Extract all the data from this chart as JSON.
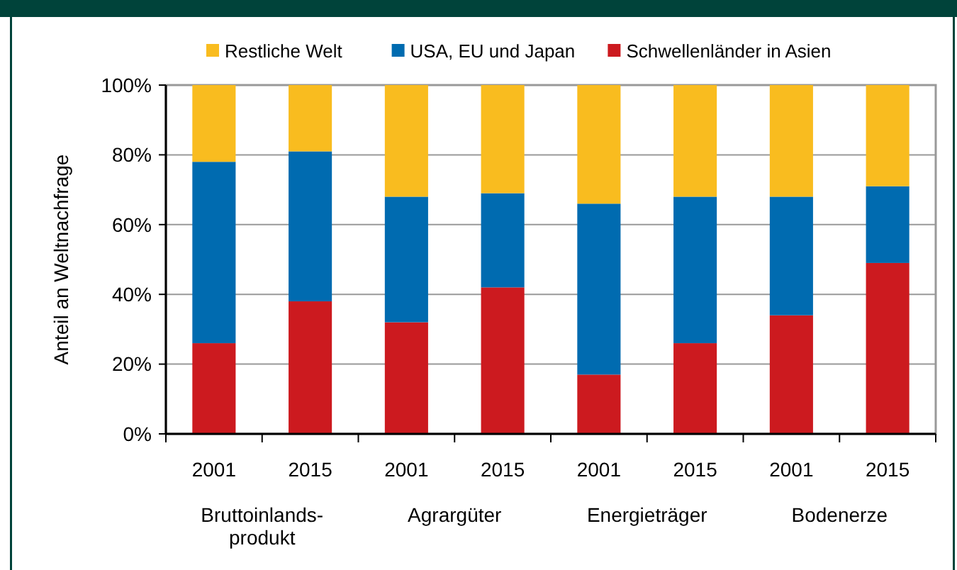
{
  "chart_data": {
    "type": "bar",
    "stacked": true,
    "ylabel": "Anteil an Weltnachfrage",
    "categories": [
      "2001",
      "2015",
      "2001",
      "2015",
      "2001",
      "2015",
      "2001",
      "2015"
    ],
    "series": [
      {
        "name": "Schwellenländer in Asien",
        "color": "#cc1a1f",
        "values": [
          26,
          38,
          32,
          42,
          17,
          26,
          34,
          49
        ]
      },
      {
        "name": "USA, EU und Japan",
        "color": "#006bb0",
        "values": [
          52,
          43,
          36,
          27,
          49,
          42,
          34,
          22
        ]
      },
      {
        "name": "Restliche Welt",
        "color": "#f9bc1f",
        "values": [
          22,
          19,
          32,
          31,
          34,
          32,
          32,
          29
        ]
      }
    ],
    "ylim": [
      0,
      100
    ],
    "yticks": [
      {
        "value": 0,
        "label": "0%"
      },
      {
        "value": 20,
        "label": "20%"
      },
      {
        "value": 40,
        "label": "40%"
      },
      {
        "value": 60,
        "label": "60%"
      },
      {
        "value": 80,
        "label": "80%"
      },
      {
        "value": 100,
        "label": "100%"
      }
    ],
    "grid": "y",
    "legend": "top",
    "annotations": [
      "Bruttoinlands-\nprodukt",
      "Agrargüter",
      "Energieträger",
      "Bodenerze"
    ]
  }
}
